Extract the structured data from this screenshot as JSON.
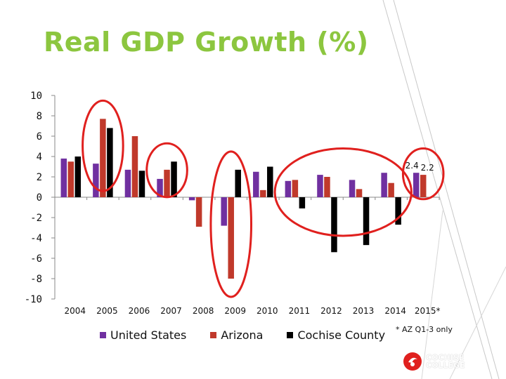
{
  "title": "Real GDP Growth (%)",
  "footnote": "* AZ Q1-3 only",
  "logo": {
    "line1": "COCHISE",
    "line2": "COLLEGE"
  },
  "colors": {
    "title": "#8cc63f",
    "us": "#7030a0",
    "az": "#c0392b",
    "cc": "#000000",
    "circle": "#e0201e"
  },
  "chart_data": {
    "type": "bar",
    "title": "Real GDP Growth (%)",
    "categories": [
      "2004",
      "2005",
      "2006",
      "2007",
      "2008",
      "2009",
      "2010",
      "2011",
      "2012",
      "2013",
      "2014",
      "2015*"
    ],
    "series": [
      {
        "name": "United States",
        "color": "#7030a0",
        "values": [
          3.8,
          3.3,
          2.7,
          1.8,
          -0.3,
          -2.8,
          2.5,
          1.6,
          2.2,
          1.7,
          2.4,
          2.4
        ]
      },
      {
        "name": "Arizona",
        "color": "#c0392b",
        "values": [
          3.5,
          7.7,
          6.0,
          2.7,
          -2.9,
          -8.0,
          0.7,
          1.7,
          2.0,
          0.8,
          1.4,
          2.2
        ]
      },
      {
        "name": "Cochise County",
        "color": "#000000",
        "values": [
          4.0,
          6.8,
          2.6,
          3.5,
          null,
          2.7,
          3.0,
          -1.1,
          -5.4,
          -4.7,
          -2.7,
          null
        ]
      }
    ],
    "data_labels": [
      {
        "series": 0,
        "index": 11,
        "text": "2.4"
      },
      {
        "series": 1,
        "index": 11,
        "text": "2.2"
      }
    ],
    "yticks": [
      "10",
      "8",
      "6",
      "4",
      "2",
      "0",
      "-2",
      "-4",
      "-6",
      "-8",
      "-10"
    ],
    "ylim": [
      -10,
      10
    ],
    "xlabel": "",
    "ylabel": "",
    "legend": "bottom",
    "highlighted_categories": [
      "2005",
      "2007",
      "2009",
      "2011",
      "2012",
      "2013",
      "2014",
      "2015*"
    ]
  }
}
